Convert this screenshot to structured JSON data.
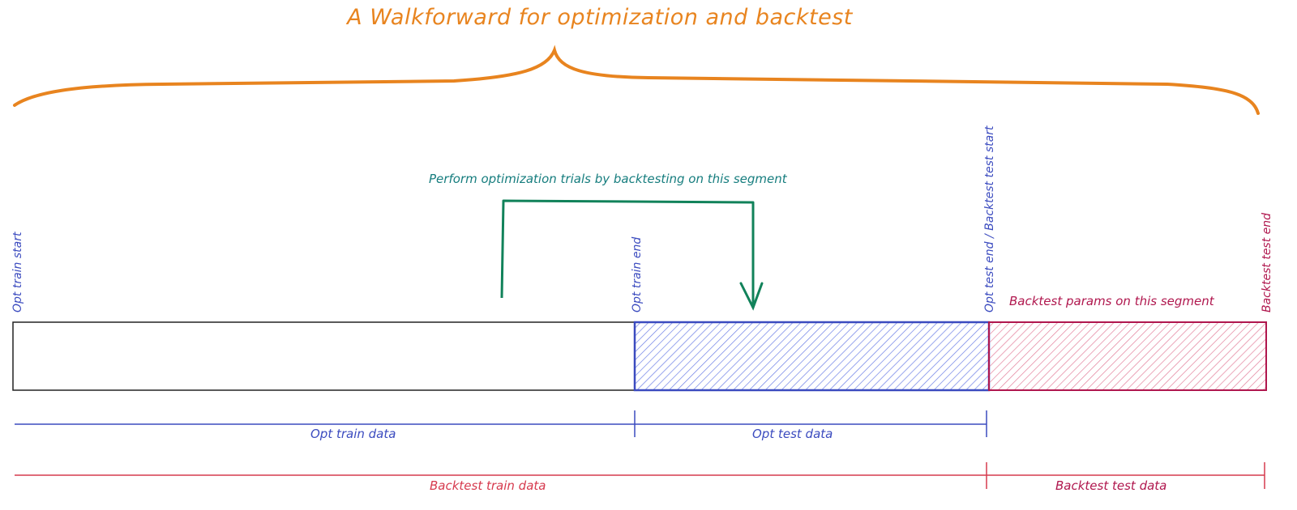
{
  "title": "A Walkforward for optimization and backtest",
  "annotations": {
    "optimization_note": "Perform optimization trials by backtesting on this segment",
    "backtest_note": "Backtest params on this segment"
  },
  "markers": {
    "opt_train_start": "Opt train start",
    "opt_train_end": "Opt train end",
    "opt_test_end_backtest_start": "Opt test end / Backtest test start",
    "backtest_test_end": "Backtest test end"
  },
  "ranges": {
    "opt_train_data": "Opt train data",
    "opt_test_data": "Opt test data",
    "backtest_train_data": "Backtest train data",
    "backtest_test_data": "Backtest test data"
  },
  "colors": {
    "title": "#e8841f",
    "teal": "#167d7e",
    "arrow": "#11825a",
    "blue": "#3b4bbf",
    "red": "#d63a4e",
    "crimson": "#b0174e",
    "hatch_blue": "#5a6fe0",
    "hatch_red": "#e06a8a"
  }
}
